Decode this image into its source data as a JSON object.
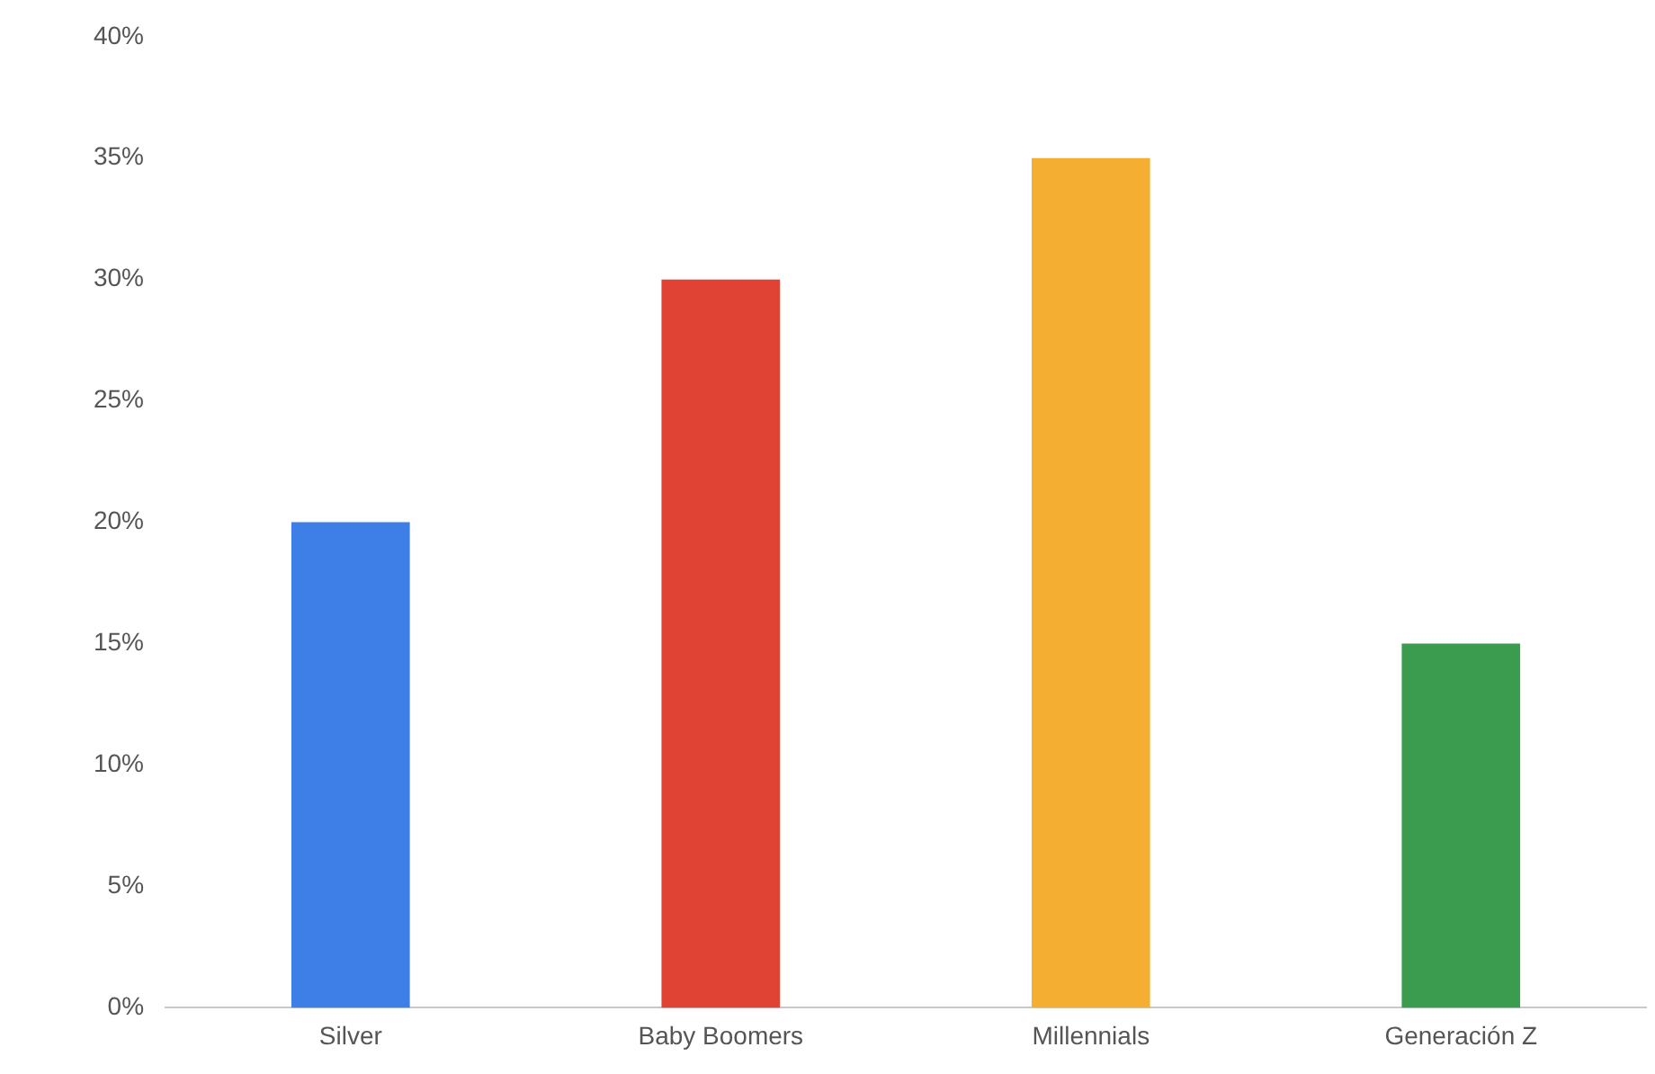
{
  "chart_data": {
    "type": "bar",
    "categories": [
      "Silver",
      "Baby Boomers",
      "Millennials",
      "Generación Z"
    ],
    "values": [
      20,
      30,
      35,
      15
    ],
    "colors": [
      "#3d7fe6",
      "#e04333",
      "#f4ae32",
      "#3b9c4f"
    ],
    "ylim": [
      0,
      40
    ],
    "yticks": [
      {
        "value": 0,
        "label": "0%"
      },
      {
        "value": 5,
        "label": "5%"
      },
      {
        "value": 10,
        "label": "10%"
      },
      {
        "value": 15,
        "label": "15%"
      },
      {
        "value": 20,
        "label": "20%"
      },
      {
        "value": 25,
        "label": "25%"
      },
      {
        "value": 30,
        "label": "30%"
      },
      {
        "value": 35,
        "label": "35%"
      },
      {
        "value": 40,
        "label": "40%"
      }
    ],
    "grid": false,
    "legend": false
  }
}
